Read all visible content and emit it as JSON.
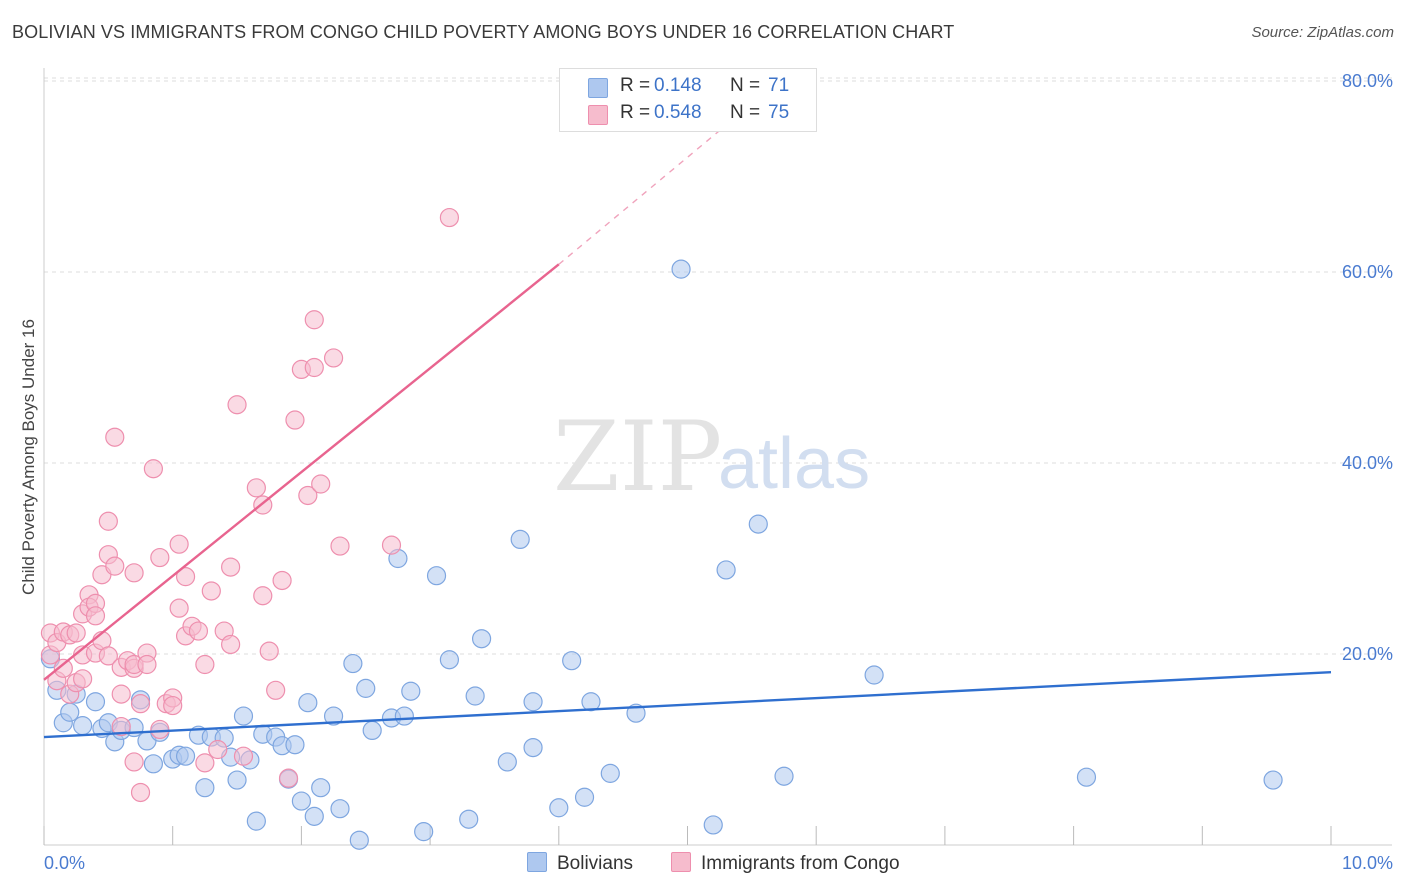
{
  "title": "BOLIVIAN VS IMMIGRANTS FROM CONGO CHILD POVERTY AMONG BOYS UNDER 16 CORRELATION CHART",
  "source": "Source: ZipAtlas.com",
  "watermark": {
    "zip": "ZIP",
    "atlas": "atlas"
  },
  "legend_top": {
    "rows": [
      {
        "r_label": "R =",
        "r_value": "0.148",
        "n_label": "N =",
        "n_value": "71"
      },
      {
        "r_label": "R =",
        "r_value": "0.548",
        "n_label": "N =",
        "n_value": "75"
      }
    ]
  },
  "legend_bottom": {
    "series1": "Bolivians",
    "series2": "Immigrants from Congo"
  },
  "colors": {
    "blue_fill": "#aec8ef",
    "blue_stroke": "#7ea6e0",
    "blue_line": "#2f6fcf",
    "pink_fill": "#f6bccd",
    "pink_stroke": "#ee8fae",
    "pink_line": "#e8648f",
    "tick_text": "#4a7bd0",
    "grid": "#dddddd"
  },
  "chart_data": {
    "type": "scatter",
    "title": "BOLIVIAN VS IMMIGRANTS FROM CONGO CHILD POVERTY AMONG BOYS UNDER 16 CORRELATION CHART",
    "xlabel": "",
    "ylabel": "Child Poverty Among Boys Under 16",
    "xlim": [
      0,
      10
    ],
    "ylim": [
      0,
      85
    ],
    "x_tick_labels": [
      "0.0%",
      "10.0%"
    ],
    "y_ticks": [
      20,
      40,
      60,
      80
    ],
    "y_tick_labels": [
      "20.0%",
      "40.0%",
      "60.0%",
      "80.0%"
    ],
    "grid": true,
    "series": [
      {
        "name": "Bolivians",
        "r": 0.148,
        "n": 71,
        "trend": {
          "x": [
            0,
            10
          ],
          "y": [
            11.3,
            18.1
          ],
          "style": "solid"
        },
        "points": [
          [
            0.05,
            19.5
          ],
          [
            0.1,
            16.2
          ],
          [
            0.15,
            12.8
          ],
          [
            0.2,
            13.9
          ],
          [
            0.25,
            15.8
          ],
          [
            0.3,
            12.5
          ],
          [
            0.4,
            15.0
          ],
          [
            0.45,
            12.2
          ],
          [
            0.5,
            12.8
          ],
          [
            0.55,
            10.8
          ],
          [
            0.6,
            12.0
          ],
          [
            0.7,
            12.3
          ],
          [
            0.75,
            15.2
          ],
          [
            0.8,
            10.9
          ],
          [
            0.85,
            8.5
          ],
          [
            0.9,
            11.8
          ],
          [
            1.0,
            9.0
          ],
          [
            1.05,
            9.4
          ],
          [
            1.1,
            9.3
          ],
          [
            1.2,
            11.5
          ],
          [
            1.25,
            6.0
          ],
          [
            1.3,
            11.3
          ],
          [
            1.4,
            11.2
          ],
          [
            1.45,
            9.2
          ],
          [
            1.5,
            6.8
          ],
          [
            1.55,
            13.5
          ],
          [
            1.6,
            8.9
          ],
          [
            1.65,
            2.5
          ],
          [
            1.7,
            11.6
          ],
          [
            1.8,
            11.3
          ],
          [
            1.85,
            10.4
          ],
          [
            1.9,
            6.9
          ],
          [
            1.95,
            10.5
          ],
          [
            2.0,
            4.6
          ],
          [
            2.05,
            14.9
          ],
          [
            2.1,
            3.0
          ],
          [
            2.15,
            6.0
          ],
          [
            2.25,
            13.5
          ],
          [
            2.3,
            3.8
          ],
          [
            2.4,
            19.0
          ],
          [
            2.45,
            0.5
          ],
          [
            2.5,
            16.4
          ],
          [
            2.55,
            12.0
          ],
          [
            2.7,
            13.3
          ],
          [
            2.75,
            30.0
          ],
          [
            2.8,
            13.5
          ],
          [
            2.85,
            16.1
          ],
          [
            2.95,
            1.4
          ],
          [
            3.05,
            28.2
          ],
          [
            3.15,
            19.4
          ],
          [
            3.3,
            2.7
          ],
          [
            3.35,
            15.6
          ],
          [
            3.4,
            21.6
          ],
          [
            3.6,
            8.7
          ],
          [
            3.7,
            32.0
          ],
          [
            3.8,
            10.2
          ],
          [
            3.8,
            15.0
          ],
          [
            4.0,
            3.9
          ],
          [
            4.1,
            19.3
          ],
          [
            4.2,
            5.0
          ],
          [
            4.25,
            15.0
          ],
          [
            4.4,
            7.5
          ],
          [
            4.6,
            13.8
          ],
          [
            4.95,
            60.3
          ],
          [
            5.2,
            2.1
          ],
          [
            5.3,
            28.8
          ],
          [
            5.55,
            33.6
          ],
          [
            5.75,
            7.2
          ],
          [
            6.45,
            17.8
          ],
          [
            8.1,
            7.1
          ],
          [
            9.55,
            6.8
          ]
        ]
      },
      {
        "name": "Immigrants from Congo",
        "r": 0.548,
        "n": 75,
        "trend": {
          "x": [
            0,
            4.0
          ],
          "y": [
            17.3,
            60.8
          ],
          "style": "solid",
          "extension": {
            "x": [
              4.0,
              5.4
            ],
            "y": [
              60.8,
              76.5
            ],
            "style": "dashed"
          }
        },
        "points": [
          [
            0.05,
            22.2
          ],
          [
            0.05,
            19.9
          ],
          [
            0.1,
            21.2
          ],
          [
            0.1,
            17.2
          ],
          [
            0.15,
            22.3
          ],
          [
            0.15,
            18.5
          ],
          [
            0.2,
            22.0
          ],
          [
            0.2,
            15.8
          ],
          [
            0.25,
            22.2
          ],
          [
            0.25,
            17.0
          ],
          [
            0.3,
            24.2
          ],
          [
            0.3,
            19.9
          ],
          [
            0.3,
            17.4
          ],
          [
            0.35,
            26.2
          ],
          [
            0.35,
            24.9
          ],
          [
            0.4,
            25.3
          ],
          [
            0.4,
            24.0
          ],
          [
            0.4,
            20.1
          ],
          [
            0.45,
            28.3
          ],
          [
            0.45,
            21.4
          ],
          [
            0.5,
            30.4
          ],
          [
            0.5,
            19.8
          ],
          [
            0.55,
            29.2
          ],
          [
            0.6,
            18.6
          ],
          [
            0.6,
            15.8
          ],
          [
            0.6,
            12.4
          ],
          [
            0.65,
            19.3
          ],
          [
            0.7,
            18.5
          ],
          [
            0.7,
            18.9
          ],
          [
            0.7,
            8.7
          ],
          [
            0.75,
            14.8
          ],
          [
            0.75,
            5.5
          ],
          [
            0.8,
            20.1
          ],
          [
            0.8,
            18.9
          ],
          [
            0.85,
            39.4
          ],
          [
            0.9,
            30.1
          ],
          [
            0.95,
            14.8
          ],
          [
            1.0,
            15.4
          ],
          [
            1.0,
            14.6
          ],
          [
            1.05,
            31.5
          ],
          [
            1.05,
            24.8
          ],
          [
            1.1,
            21.9
          ],
          [
            1.1,
            28.1
          ],
          [
            1.15,
            22.9
          ],
          [
            1.2,
            22.4
          ],
          [
            1.25,
            18.9
          ],
          [
            1.25,
            8.6
          ],
          [
            1.3,
            26.6
          ],
          [
            1.35,
            10.0
          ],
          [
            1.4,
            22.4
          ],
          [
            1.45,
            21.0
          ],
          [
            1.45,
            29.1
          ],
          [
            1.5,
            46.1
          ],
          [
            1.55,
            9.3
          ],
          [
            1.65,
            37.4
          ],
          [
            1.7,
            35.6
          ],
          [
            1.7,
            26.1
          ],
          [
            1.75,
            20.3
          ],
          [
            1.8,
            16.2
          ],
          [
            1.85,
            27.7
          ],
          [
            1.9,
            7.0
          ],
          [
            1.95,
            44.5
          ],
          [
            2.0,
            49.8
          ],
          [
            2.05,
            36.6
          ],
          [
            2.1,
            50.0
          ],
          [
            2.1,
            55.0
          ],
          [
            2.15,
            37.8
          ],
          [
            2.25,
            51.0
          ],
          [
            2.3,
            31.3
          ],
          [
            2.7,
            31.4
          ],
          [
            3.15,
            65.7
          ],
          [
            0.55,
            42.7
          ],
          [
            0.5,
            33.9
          ],
          [
            0.9,
            12.1
          ],
          [
            0.7,
            28.5
          ]
        ]
      }
    ]
  }
}
